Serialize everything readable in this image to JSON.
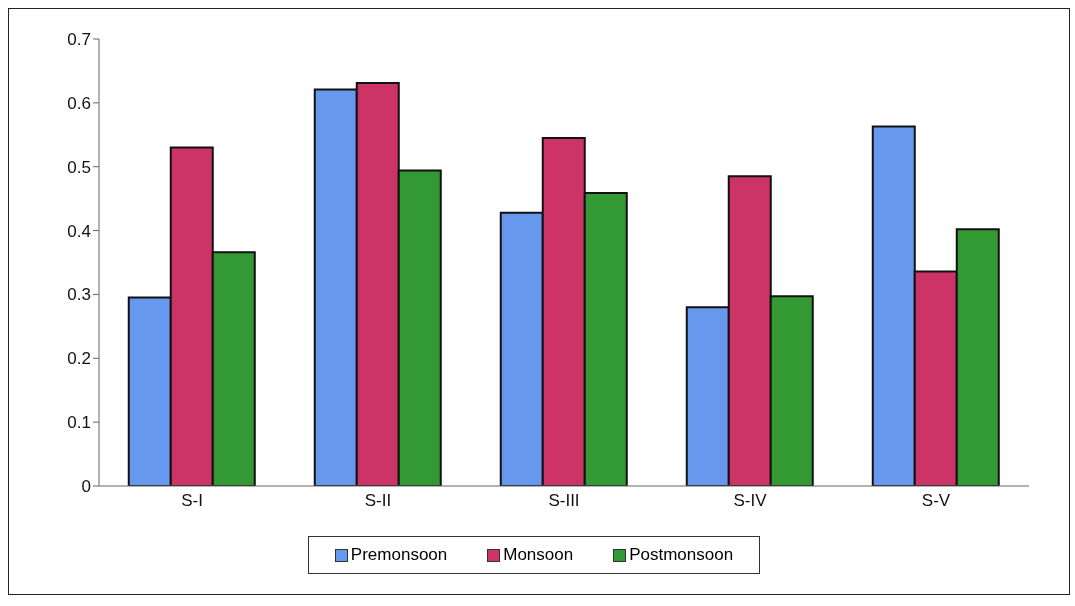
{
  "chart_data": {
    "type": "bar",
    "categories": [
      "S-I",
      "S-II",
      "S-III",
      "S-IV",
      "S-V"
    ],
    "series": [
      {
        "name": "Premonsoon",
        "color": "#6699ee",
        "values": [
          0.295,
          0.621,
          0.428,
          0.28,
          0.563
        ]
      },
      {
        "name": "Monsoon",
        "color": "#cc3366",
        "values": [
          0.53,
          0.631,
          0.545,
          0.485,
          0.336
        ]
      },
      {
        "name": "Postmonsoon",
        "color": "#339933",
        "values": [
          0.366,
          0.494,
          0.459,
          0.297,
          0.402
        ]
      }
    ],
    "ylim": [
      0,
      0.7
    ],
    "yticks": [
      0,
      0.1,
      0.2,
      0.3,
      0.4,
      0.5,
      0.6,
      0.7
    ],
    "grid": false,
    "legend": "bottom"
  }
}
